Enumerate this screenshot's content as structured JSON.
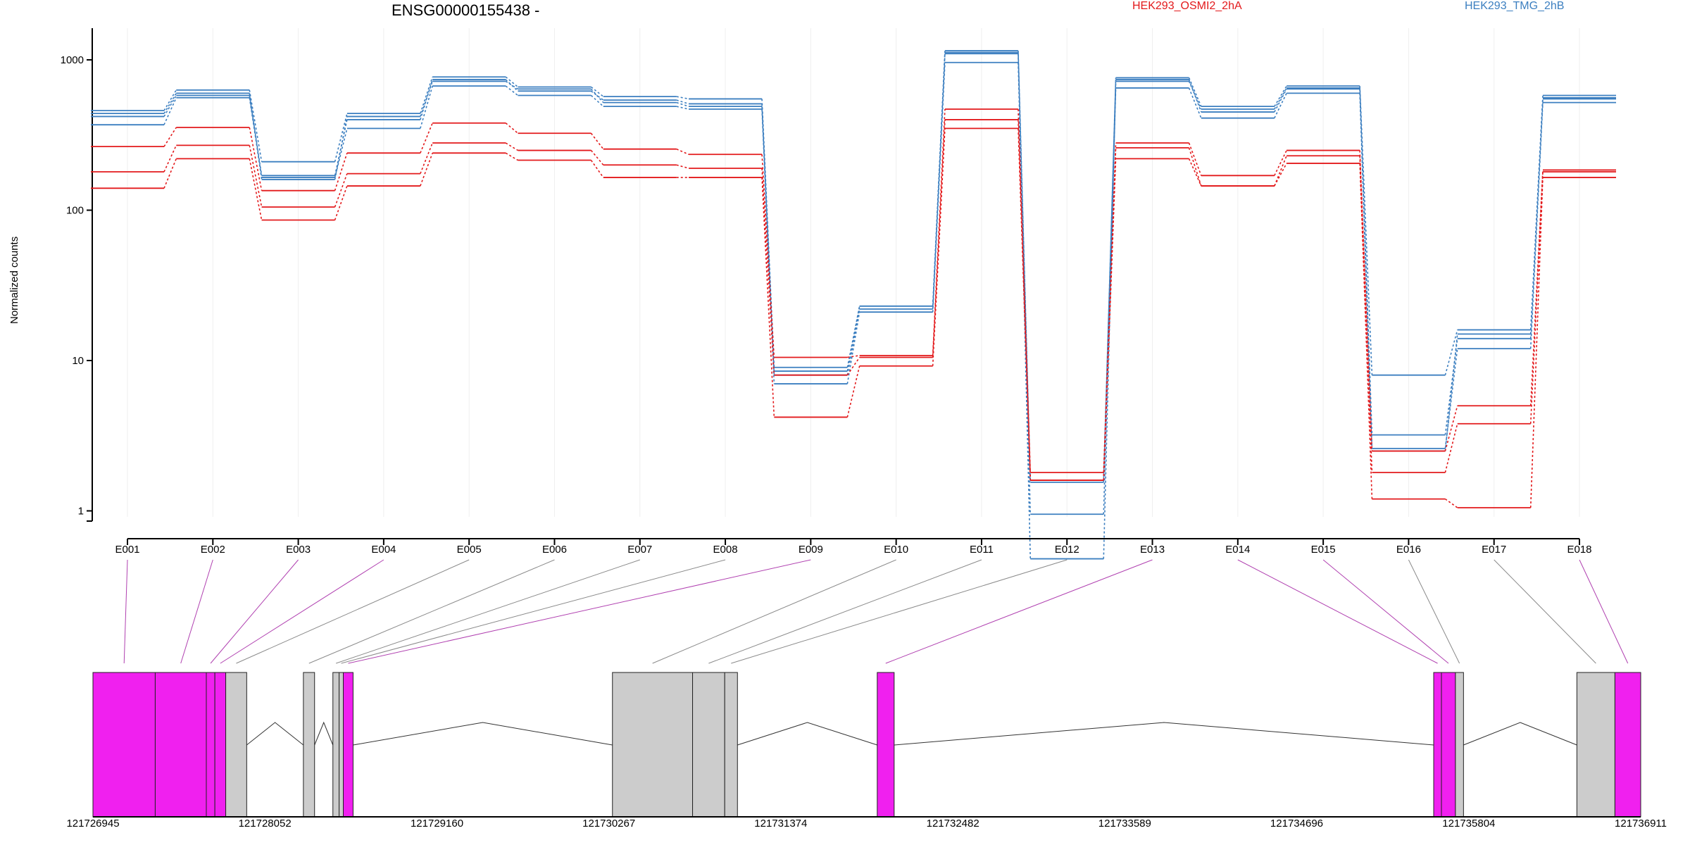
{
  "chart_data": {
    "type": "line",
    "title": "ENSG00000155438 -",
    "ylabel": "Normalized counts",
    "y_scale": "log",
    "ylim": [
      0.5,
      1500
    ],
    "y_ticks": [
      1,
      10,
      100,
      1000
    ],
    "grid": false,
    "legend_placement": "top",
    "legend": [
      {
        "name": "HEK293_OSMI2_2hA",
        "color": "#e31a1c"
      },
      {
        "name": "HEK293_TMG_2hB",
        "color": "#3c7fc0"
      }
    ],
    "categories": [
      "E001",
      "E002",
      "E003",
      "E004",
      "E005",
      "E006",
      "E007",
      "E008",
      "E009",
      "E010",
      "E011",
      "E012",
      "E013",
      "E014",
      "E015",
      "E016",
      "E017",
      "E018"
    ],
    "series": [
      {
        "group": "HEK293_TMG_2hB",
        "color": "#3c7fc0",
        "values": [
          460,
          630,
          210,
          440,
          770,
          660,
          570,
          550,
          9,
          23,
          1150,
          1.6,
          760,
          490,
          670,
          8,
          16,
          580
        ]
      },
      {
        "group": "HEK293_TMG_2hB",
        "color": "#3c7fc0",
        "values": [
          420,
          580,
          170,
          400,
          740,
          620,
          540,
          510,
          8.5,
          23,
          1120,
          1.55,
          740,
          450,
          640,
          3.2,
          14,
          550
        ]
      },
      {
        "group": "HEK293_TMG_2hB",
        "color": "#3c7fc0",
        "values": [
          370,
          560,
          165,
          350,
          670,
          580,
          490,
          470,
          7,
          21,
          960,
          0.95,
          650,
          410,
          600,
          2.6,
          12,
          520
        ]
      },
      {
        "group": "HEK293_TMG_2hB",
        "color": "#3c7fc0",
        "values": [
          440,
          600,
          160,
          420,
          720,
          640,
          520,
          490,
          8,
          22,
          1100,
          0.48,
          720,
          470,
          650,
          2.5,
          15,
          560
        ]
      },
      {
        "group": "HEK293_OSMI2_2hA",
        "color": "#e31a1c",
        "values": [
          265,
          355,
          135,
          240,
          380,
          325,
          255,
          235,
          10.5,
          10.8,
          470,
          1.8,
          280,
          170,
          250,
          2.5,
          5,
          185
        ]
      },
      {
        "group": "HEK293_OSMI2_2hA",
        "color": "#e31a1c",
        "values": [
          180,
          270,
          105,
          175,
          280,
          250,
          200,
          190,
          8,
          10.5,
          400,
          1.6,
          260,
          145,
          230,
          1.8,
          3.8,
          180
        ]
      },
      {
        "group": "HEK293_OSMI2_2hA",
        "color": "#e31a1c",
        "values": [
          140,
          220,
          86,
          145,
          240,
          215,
          165,
          165,
          4.2,
          9.2,
          350,
          1.6,
          220,
          145,
          205,
          1.2,
          1.05,
          165
        ]
      }
    ],
    "gene_model": {
      "type": "exon_structure",
      "coord_ticks": [
        "121726945",
        "121728052",
        "121729160",
        "121730267",
        "121731374",
        "121732482",
        "121733589",
        "121734696",
        "121735804",
        "121736911"
      ],
      "coord_tick_values": [
        121726945,
        121728052,
        121729160,
        121730267,
        121731374,
        121732482,
        121733589,
        121734696,
        121735804,
        121736911
      ],
      "coord_range": [
        121726945,
        121736911
      ],
      "exon_colors": {
        "significant": "#f020ef",
        "non_significant": "#cccccc"
      },
      "exons": [
        {
          "id": "E001",
          "start": 121726945,
          "end": 121727346,
          "significant": true
        },
        {
          "id": "E002",
          "start": 121727346,
          "end": 121727675,
          "significant": true
        },
        {
          "id": "E003",
          "start": 121727675,
          "end": 121727730,
          "significant": true
        },
        {
          "id": "E004",
          "start": 121727730,
          "end": 121727800,
          "significant": true
        },
        {
          "id": "E005",
          "start": 121727800,
          "end": 121727935,
          "significant": false
        },
        {
          "id": "E006",
          "start": 121728300,
          "end": 121728372,
          "significant": false
        },
        {
          "id": "E007",
          "start": 121728490,
          "end": 121728530,
          "significant": false
        },
        {
          "id": "E008",
          "start": 121728530,
          "end": 121728557,
          "significant": false
        },
        {
          "id": "E009",
          "start": 121728557,
          "end": 121728620,
          "significant": true
        },
        {
          "id": "E010",
          "start": 121730290,
          "end": 121730806,
          "significant": false
        },
        {
          "id": "E011",
          "start": 121730806,
          "end": 121731013,
          "significant": false
        },
        {
          "id": "E012",
          "start": 121731013,
          "end": 121731095,
          "significant": false
        },
        {
          "id": "E013",
          "start": 121731995,
          "end": 121732104,
          "significant": true
        },
        {
          "id": "E014",
          "start": 121735578,
          "end": 121735628,
          "significant": true
        },
        {
          "id": "E015",
          "start": 121735628,
          "end": 121735718,
          "significant": true
        },
        {
          "id": "E016",
          "start": 121735718,
          "end": 121735770,
          "significant": false
        },
        {
          "id": "E017",
          "start": 121736500,
          "end": 121736745,
          "significant": false
        },
        {
          "id": "E018",
          "start": 121736745,
          "end": 121736911,
          "significant": true
        }
      ],
      "introns": [
        [
          121727935,
          121728300
        ],
        [
          121728372,
          121728490
        ],
        [
          121728620,
          121730290
        ],
        [
          121731095,
          121731995
        ],
        [
          121732104,
          121735578
        ],
        [
          121735770,
          121736500
        ]
      ]
    }
  }
}
